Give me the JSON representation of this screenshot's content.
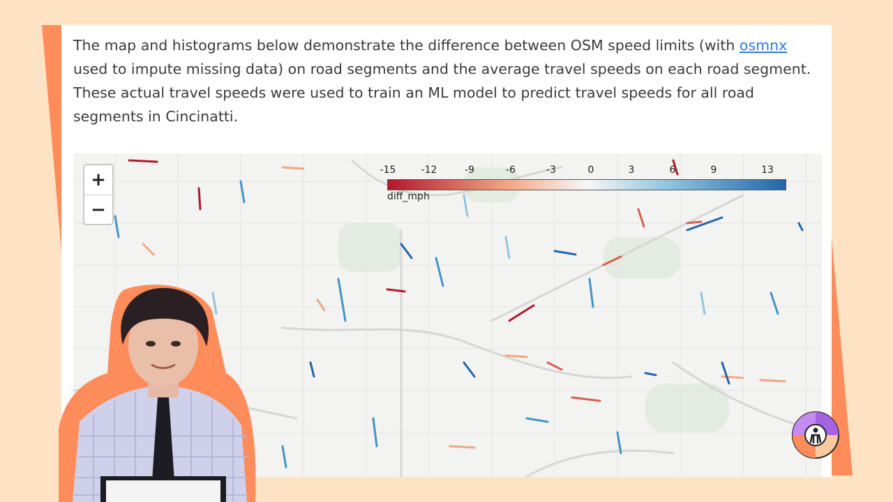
{
  "description": {
    "text_1": "The map and histograms below demonstrate the difference between OSM speed limits (with ",
    "link_text": "osmnx",
    "text_2": " used to impute missing data) on road segments and the average travel speeds on each road segment. These actual travel speeds were used to train an ML model to predict travel speeds for all road segments in Cincinatti."
  },
  "map": {
    "zoom_in_label": "+",
    "zoom_out_label": "−",
    "legend": {
      "title": "diff_mph",
      "ticks": [
        "-15",
        "-12",
        "-9",
        "-6",
        "-3",
        "0",
        "3",
        "6",
        "9",
        "13"
      ],
      "range": [
        -15,
        15
      ],
      "colors": {
        "negative": "#b2182b",
        "neutral": "#f7f7f7",
        "positive": "#2166ac"
      }
    }
  },
  "colors": {
    "background": "#fde3c4",
    "accent_orange": "#ff8c5a",
    "link": "#2a7ae2",
    "logo_purple": "#a463e0",
    "logo_peach": "#f9c9a0"
  },
  "icons": {
    "logo": "person-in-circle-icon",
    "zoom_in": "plus-icon",
    "zoom_out": "minus-icon"
  }
}
